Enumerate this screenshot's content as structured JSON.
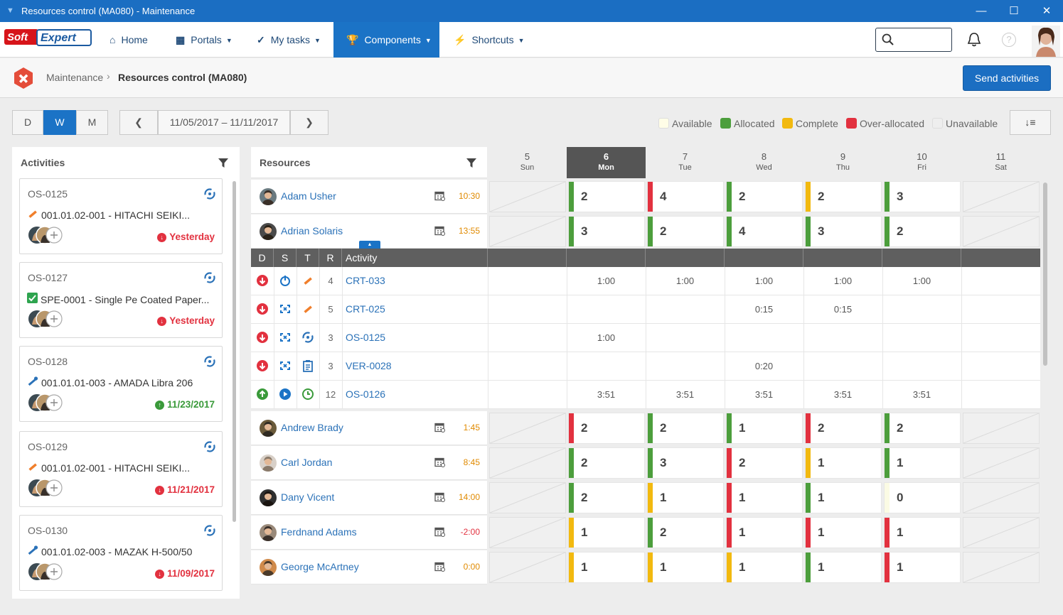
{
  "window": {
    "title": "Resources control (MA080) - Maintenance"
  },
  "nav": {
    "home": "Home",
    "portals": "Portals",
    "my_tasks": "My tasks",
    "components": "Components",
    "shortcuts": "Shortcuts",
    "search_placeholder": ""
  },
  "breadcrumb": {
    "parent": "Maintenance",
    "current": "Resources control (MA080)"
  },
  "send_button": "Send activities",
  "view": {
    "d": "D",
    "w": "W",
    "m": "M",
    "date_range": "11/05/2017 – 11/11/2017"
  },
  "legend": {
    "available": "Available",
    "allocated": "Allocated",
    "complete": "Complete",
    "over_allocated": "Over-allocated",
    "unavailable": "Unavailable"
  },
  "colors": {
    "green": "#4c9e3c",
    "yellow": "#f2b90f",
    "red": "#e2313f",
    "blue": "#1b73c6"
  },
  "activities": {
    "title": "Activities",
    "cards": [
      {
        "id": "OS-0125",
        "desc": "001.01.02-001 - HITACHI SEIKI...",
        "date": "Yesterday",
        "late": true
      },
      {
        "id": "OS-0127",
        "desc": "SPE-0001 - Single Pe Coated Paper...",
        "date": "Yesterday",
        "late": true
      },
      {
        "id": "OS-0128",
        "desc": "001.01.01-003 - AMADA Libra 206",
        "date": "11/23/2017",
        "late": false
      },
      {
        "id": "OS-0129",
        "desc": "001.01.02-001 - HITACHI SEIKI...",
        "date": "11/21/2017",
        "late": true
      },
      {
        "id": "OS-0130",
        "desc": "001.01.02-003 - MAZAK H-500/50",
        "date": "11/09/2017",
        "late": true
      }
    ]
  },
  "resources": {
    "title": "Resources"
  },
  "days": [
    {
      "n": "5",
      "w": "Sun"
    },
    {
      "n": "6",
      "w": "Mon"
    },
    {
      "n": "7",
      "w": "Tue"
    },
    {
      "n": "8",
      "w": "Wed"
    },
    {
      "n": "9",
      "w": "Thu"
    },
    {
      "n": "10",
      "w": "Fri"
    },
    {
      "n": "11",
      "w": "Sat"
    }
  ],
  "people": [
    {
      "name": "Adam Usher",
      "hours": "10:30",
      "cells": [
        [
          "g",
          "2"
        ],
        [
          "r",
          "4"
        ],
        [
          "g",
          "2"
        ],
        [
          "y",
          "2"
        ],
        [
          "g",
          "3"
        ]
      ]
    },
    {
      "name": "Adrian Solaris",
      "hours": "13:55",
      "cells": [
        [
          "g",
          "3"
        ],
        [
          "g",
          "2"
        ],
        [
          "g",
          "4"
        ],
        [
          "g",
          "3"
        ],
        [
          "g",
          "2"
        ]
      ]
    },
    {
      "name": "Andrew Brady",
      "hours": "1:45",
      "cells": [
        [
          "r",
          "2"
        ],
        [
          "g",
          "2"
        ],
        [
          "g",
          "1"
        ],
        [
          "r",
          "2"
        ],
        [
          "g",
          "2"
        ]
      ]
    },
    {
      "name": "Carl Jordan",
      "hours": "8:45",
      "cells": [
        [
          "g",
          "2"
        ],
        [
          "g",
          "3"
        ],
        [
          "r",
          "2"
        ],
        [
          "y",
          "1"
        ],
        [
          "g",
          "1"
        ]
      ]
    },
    {
      "name": "Dany Vicent",
      "hours": "14:00",
      "cells": [
        [
          "g",
          "2"
        ],
        [
          "y",
          "1"
        ],
        [
          "r",
          "1"
        ],
        [
          "g",
          "1"
        ],
        [
          "n",
          "0"
        ]
      ]
    },
    {
      "name": "Ferdnand Adams",
      "hours": "-2:00",
      "cells": [
        [
          "y",
          "1"
        ],
        [
          "g",
          "2"
        ],
        [
          "r",
          "1"
        ],
        [
          "r",
          "1"
        ],
        [
          "r",
          "1"
        ]
      ]
    },
    {
      "name": "George McArtney",
      "hours": "0:00",
      "cells": [
        [
          "y",
          "1"
        ],
        [
          "y",
          "1"
        ],
        [
          "y",
          "1"
        ],
        [
          "g",
          "1"
        ],
        [
          "r",
          "1"
        ]
      ]
    }
  ],
  "activity_table": {
    "headers": {
      "d": "D",
      "s": "S",
      "t": "T",
      "r": "R",
      "activity": "Activity"
    },
    "rows": [
      {
        "r": "4",
        "name": "CRT-033",
        "times": [
          "",
          "1:00",
          "1:00",
          "1:00",
          "1:00",
          "1:00",
          ""
        ]
      },
      {
        "r": "5",
        "name": "CRT-025",
        "times": [
          "",
          "",
          "",
          "0:15",
          "0:15",
          "",
          ""
        ]
      },
      {
        "r": "3",
        "name": "OS-0125",
        "times": [
          "",
          "1:00",
          "",
          "",
          "",
          "",
          ""
        ]
      },
      {
        "r": "3",
        "name": "VER-0028",
        "times": [
          "",
          "",
          "",
          "0:20",
          "",
          "",
          ""
        ]
      },
      {
        "r": "12",
        "name": "OS-0126",
        "times": [
          "",
          "3:51",
          "3:51",
          "3:51",
          "3:51",
          "3:51",
          ""
        ]
      }
    ]
  }
}
